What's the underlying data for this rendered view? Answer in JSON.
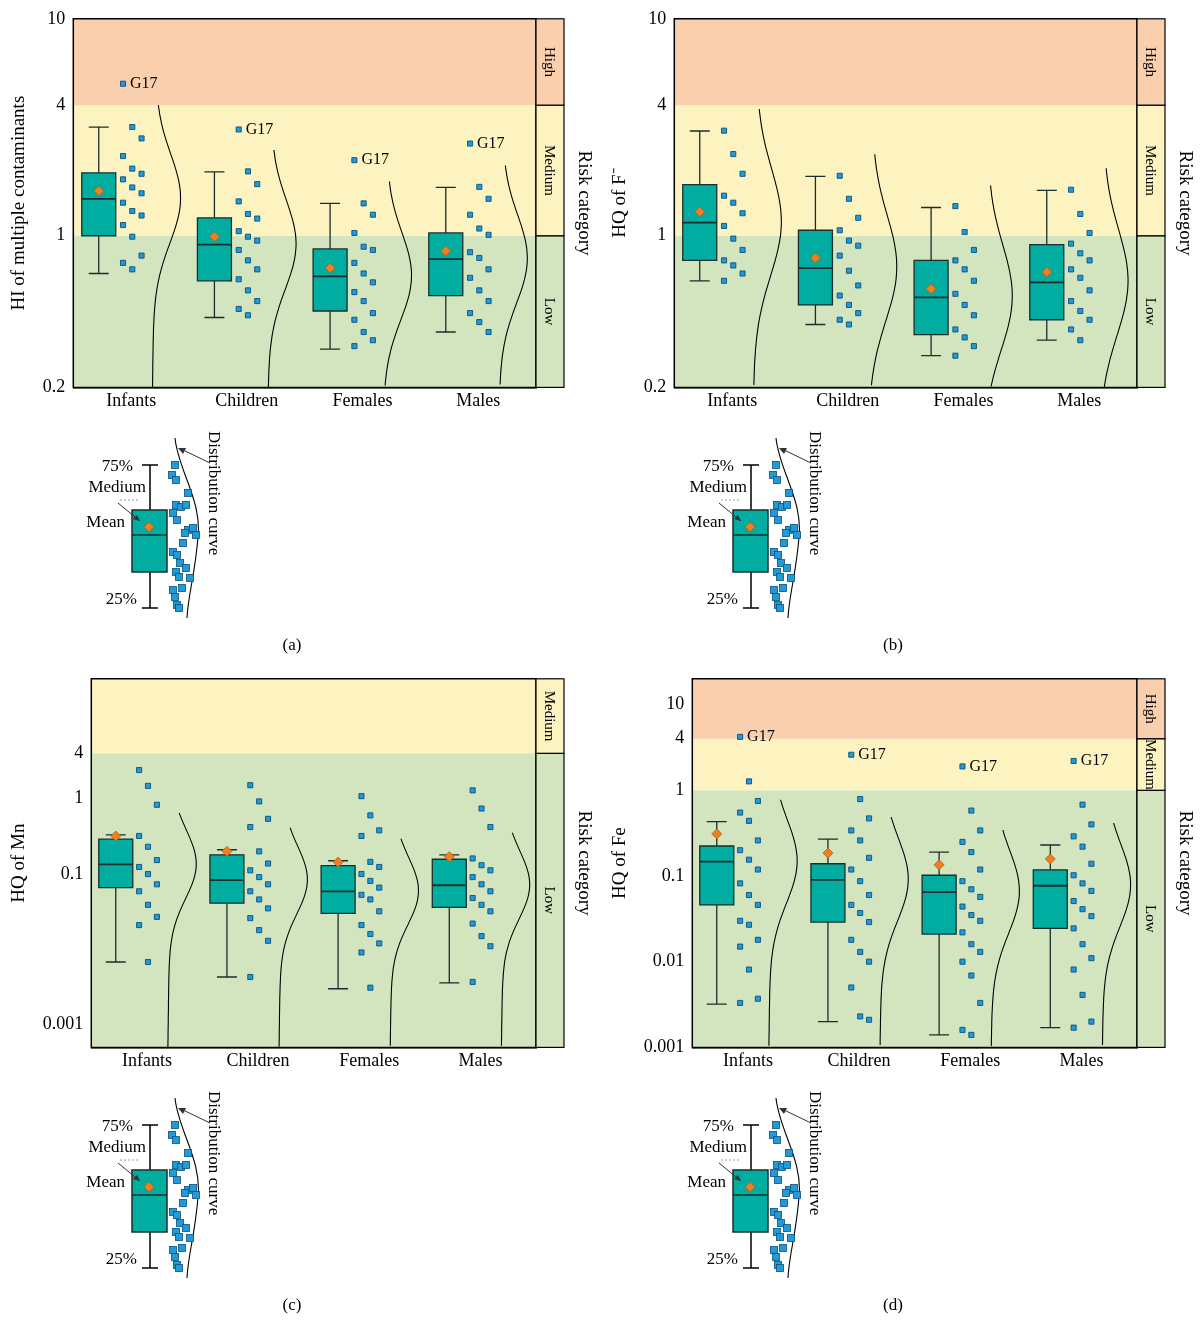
{
  "chart_data": [
    {
      "type": "box",
      "ylabel": "HI of multiple contaminants",
      "y2label": "Risk category",
      "log": true,
      "ylim": [
        0.2,
        10
      ],
      "yticks": [
        0.2,
        1,
        4,
        10
      ],
      "marker": "square",
      "categories": [
        "Infants",
        "Children",
        "Females",
        "Males"
      ],
      "boxes": [
        {
          "low": 0.67,
          "q1": 1.0,
          "median": 1.48,
          "q3": 1.95,
          "high": 3.17,
          "mean": 1.61
        },
        {
          "low": 0.42,
          "q1": 0.62,
          "median": 0.91,
          "q3": 1.21,
          "high": 1.97,
          "mean": 0.99
        },
        {
          "low": 0.3,
          "q1": 0.45,
          "median": 0.65,
          "q3": 0.87,
          "high": 1.41,
          "mean": 0.71
        },
        {
          "low": 0.36,
          "q1": 0.53,
          "median": 0.78,
          "q3": 1.03,
          "high": 1.67,
          "mean": 0.85
        }
      ],
      "series": [
        {
          "type": "scatter",
          "color": "#1f9bd7",
          "x": [
            "Infants",
            "Infants",
            "Infants",
            "Infants",
            "Infants",
            "Infants",
            "Infants",
            "Infants",
            "Infants",
            "Infants",
            "Infants",
            "Infants",
            "Infants",
            "Infants",
            "Infants",
            "Infants",
            "Infants"
          ],
          "values": [
            5.02,
            3.17,
            2.81,
            2.33,
            2.04,
            1.93,
            1.82,
            1.67,
            1.57,
            1.42,
            1.3,
            1.24,
            1.12,
            0.99,
            0.81,
            0.75,
            0.7
          ]
        },
        {
          "type": "scatter",
          "color": "#1f9bd7",
          "x": [
            "Children",
            "Children",
            "Children",
            "Children",
            "Children",
            "Children",
            "Children",
            "Children",
            "Children",
            "Children",
            "Children",
            "Children",
            "Children",
            "Children",
            "Children",
            "Children",
            "Children"
          ],
          "values": [
            3.09,
            1.98,
            1.73,
            1.44,
            1.26,
            1.2,
            1.05,
            0.99,
            0.95,
            0.86,
            0.77,
            0.7,
            0.63,
            0.56,
            0.5,
            0.46,
            0.43
          ]
        },
        {
          "type": "scatter",
          "color": "#1f9bd7",
          "x": [
            "Females",
            "Females",
            "Females",
            "Females",
            "Females",
            "Females",
            "Females",
            "Females",
            "Females",
            "Females",
            "Females",
            "Females",
            "Females",
            "Females",
            "Females",
            "Females"
          ],
          "values": [
            2.23,
            1.41,
            1.25,
            1.03,
            0.89,
            0.86,
            0.75,
            0.67,
            0.61,
            0.55,
            0.5,
            0.44,
            0.41,
            0.36,
            0.33,
            0.31
          ]
        },
        {
          "type": "scatter",
          "color": "#1f9bd7",
          "x": [
            "Males",
            "Males",
            "Males",
            "Males",
            "Males",
            "Males",
            "Males",
            "Males",
            "Males",
            "Males",
            "Males",
            "Males",
            "Males",
            "Males",
            "Males"
          ],
          "values": [
            2.66,
            1.68,
            1.48,
            1.25,
            1.08,
            1.01,
            0.84,
            0.79,
            0.7,
            0.64,
            0.56,
            0.5,
            0.44,
            0.4,
            0.36
          ]
        }
      ],
      "bands": [
        {
          "axis": "y",
          "from": 0.2,
          "to": 1,
          "label": "Low",
          "color": "#d3e5bf"
        },
        {
          "axis": "y",
          "from": 1,
          "to": 4,
          "label": "Medium",
          "color": "#fdf3c0"
        },
        {
          "axis": "y",
          "from": 4,
          "to": 10,
          "label": "High",
          "color": "#f9cfae"
        }
      ],
      "annotations": [
        "G17",
        "G17",
        "G17",
        "G17",
        "(a)",
        "75%",
        "Medium",
        "Mean",
        "25%",
        "Distribution curve"
      ]
    },
    {
      "type": "box",
      "ylabel": "HQ of F⁻",
      "y2label": "Risk category",
      "log": true,
      "ylim": [
        0.2,
        10
      ],
      "yticks": [
        0.2,
        1,
        4,
        10
      ],
      "marker": "square",
      "categories": [
        "Infants",
        "Children",
        "Females",
        "Males"
      ],
      "boxes": [
        {
          "low": 0.62,
          "q1": 0.77,
          "median": 1.15,
          "q3": 1.72,
          "high": 3.04,
          "mean": 1.29
        },
        {
          "low": 0.39,
          "q1": 0.48,
          "median": 0.71,
          "q3": 1.06,
          "high": 1.88,
          "mean": 0.79
        },
        {
          "low": 0.28,
          "q1": 0.35,
          "median": 0.52,
          "q3": 0.77,
          "high": 1.35,
          "mean": 0.57
        },
        {
          "low": 0.33,
          "q1": 0.41,
          "median": 0.61,
          "q3": 0.91,
          "high": 1.62,
          "mean": 0.68
        }
      ],
      "series": [
        {
          "type": "scatter",
          "color": "#1f9bd7",
          "x": [
            "Infants",
            "Infants",
            "Infants",
            "Infants",
            "Infants",
            "Infants",
            "Infants",
            "Infants",
            "Infants",
            "Infants",
            "Infants",
            "Infants",
            "Infants"
          ],
          "values": [
            3.05,
            2.38,
            1.93,
            1.53,
            1.42,
            1.27,
            1.11,
            0.97,
            0.86,
            0.77,
            0.73,
            0.67,
            0.62
          ]
        },
        {
          "type": "scatter",
          "color": "#1f9bd7",
          "x": [
            "Children",
            "Children",
            "Children",
            "Children",
            "Children",
            "Children",
            "Children",
            "Children",
            "Children",
            "Children",
            "Children",
            "Children",
            "Children",
            "Children"
          ],
          "values": [
            1.89,
            1.48,
            1.21,
            1.06,
            0.95,
            0.9,
            0.81,
            0.69,
            0.59,
            0.53,
            0.48,
            0.44,
            0.41,
            0.39
          ]
        },
        {
          "type": "scatter",
          "color": "#1f9bd7",
          "x": [
            "Females",
            "Females",
            "Females",
            "Females",
            "Females",
            "Females",
            "Females",
            "Females",
            "Females",
            "Females",
            "Females",
            "Females",
            "Females"
          ],
          "values": [
            1.37,
            1.04,
            0.86,
            0.77,
            0.7,
            0.62,
            0.54,
            0.48,
            0.43,
            0.37,
            0.34,
            0.31,
            0.28
          ]
        },
        {
          "type": "scatter",
          "color": "#1f9bd7",
          "x": [
            "Males",
            "Males",
            "Males",
            "Males",
            "Males",
            "Males",
            "Males",
            "Males",
            "Males",
            "Males",
            "Males",
            "Males",
            "Males",
            "Males"
          ],
          "values": [
            1.63,
            1.26,
            1.03,
            0.92,
            0.83,
            0.77,
            0.7,
            0.64,
            0.56,
            0.5,
            0.45,
            0.41,
            0.37,
            0.33
          ]
        }
      ],
      "bands": [
        {
          "axis": "y",
          "from": 0.2,
          "to": 1,
          "label": "Low",
          "color": "#d3e5bf"
        },
        {
          "axis": "y",
          "from": 1,
          "to": 4,
          "label": "Medium",
          "color": "#fdf3c0"
        },
        {
          "axis": "y",
          "from": 4,
          "to": 10,
          "label": "High",
          "color": "#f9cfae"
        }
      ],
      "annotations": [
        "(b)",
        "75%",
        "Medium",
        "Mean",
        "25%",
        "Distribution curve"
      ]
    },
    {
      "type": "box",
      "ylabel": "HQ of Mn",
      "y2label": "Risk category",
      "log": true,
      "ylim": [
        0.0005,
        39
      ],
      "yticks": [
        0.001,
        0.1,
        1,
        4
      ],
      "marker": "square",
      "categories": [
        "Infants",
        "Children",
        "Females",
        "Males"
      ],
      "boxes": [
        {
          "low": 0.0068,
          "q1": 0.066,
          "median": 0.134,
          "q3": 0.29,
          "high": 0.33,
          "mean": 0.32
        },
        {
          "low": 0.0043,
          "q1": 0.041,
          "median": 0.083,
          "q3": 0.18,
          "high": 0.21,
          "mean": 0.2
        },
        {
          "low": 0.003,
          "q1": 0.03,
          "median": 0.059,
          "q3": 0.129,
          "high": 0.15,
          "mean": 0.144
        },
        {
          "low": 0.0036,
          "q1": 0.036,
          "median": 0.071,
          "q3": 0.157,
          "high": 0.18,
          "mean": 0.17
        }
      ],
      "series": [
        {
          "type": "scatter",
          "color": "#1f9bd7",
          "x": [
            "Infants",
            "Infants",
            "Infants",
            "Infants",
            "Infants",
            "Infants",
            "Infants",
            "Infants",
            "Infants",
            "Infants",
            "Infants",
            "Infants",
            "Infants",
            "Infants"
          ],
          "values": [
            2.4,
            1.48,
            0.83,
            0.32,
            0.23,
            0.153,
            0.124,
            0.1,
            0.073,
            0.059,
            0.039,
            0.027,
            0.021,
            0.0068
          ]
        },
        {
          "type": "scatter",
          "color": "#1f9bd7",
          "x": [
            "Children",
            "Children",
            "Children",
            "Children",
            "Children",
            "Children",
            "Children",
            "Children",
            "Children",
            "Children",
            "Children",
            "Children",
            "Children",
            "Children",
            "Children",
            "Children"
          ],
          "values": [
            1.51,
            0.92,
            0.54,
            0.42,
            0.2,
            0.138,
            0.112,
            0.091,
            0.073,
            0.059,
            0.046,
            0.035,
            0.026,
            0.018,
            0.013,
            0.0043
          ]
        },
        {
          "type": "scatter",
          "color": "#1f9bd7",
          "x": [
            "Females",
            "Females",
            "Females",
            "Females",
            "Females",
            "Females",
            "Females",
            "Females",
            "Females",
            "Females",
            "Females",
            "Females",
            "Females",
            "Females",
            "Females",
            "Females",
            "Females"
          ],
          "values": [
            1.08,
            0.6,
            0.38,
            0.32,
            0.145,
            0.124,
            0.1,
            0.081,
            0.066,
            0.053,
            0.046,
            0.032,
            0.021,
            0.016,
            0.012,
            0.0091,
            0.0031
          ]
        },
        {
          "type": "scatter",
          "color": "#1f9bd7",
          "x": [
            "Males",
            "Males",
            "Males",
            "Males",
            "Males",
            "Males",
            "Males",
            "Males",
            "Males",
            "Males",
            "Males",
            "Males",
            "Males",
            "Males",
            "Males",
            "Males"
          ],
          "values": [
            1.29,
            0.74,
            0.42,
            0.161,
            0.131,
            0.112,
            0.091,
            0.073,
            0.059,
            0.048,
            0.039,
            0.032,
            0.022,
            0.015,
            0.011,
            0.0037
          ]
        }
      ],
      "bands": [
        {
          "axis": "y",
          "from": 0.0005,
          "to": 4,
          "label": "Low",
          "color": "#d3e5bf"
        },
        {
          "axis": "y",
          "from": 4,
          "to": 39,
          "label": "Medium",
          "color": "#fdf3c0"
        }
      ],
      "annotations": [
        "(c)",
        "75%",
        "Medium",
        "Mean",
        "25%",
        "Distribution curve"
      ]
    },
    {
      "type": "box",
      "ylabel": "HQ of Fe",
      "y2label": "Risk category",
      "log": true,
      "ylim": [
        0.001,
        20
      ],
      "yticks": [
        0.001,
        0.01,
        0.1,
        1,
        4,
        10
      ],
      "marker": "square",
      "categories": [
        "Infants",
        "Children",
        "Females",
        "Males"
      ],
      "boxes": [
        {
          "low": 0.0032,
          "q1": 0.046,
          "median": 0.147,
          "q3": 0.224,
          "high": 0.43,
          "mean": 0.31
        },
        {
          "low": 0.002,
          "q1": 0.029,
          "median": 0.09,
          "q3": 0.139,
          "high": 0.27,
          "mean": 0.185
        },
        {
          "low": 0.0014,
          "q1": 0.021,
          "median": 0.065,
          "q3": 0.102,
          "high": 0.19,
          "mean": 0.135
        },
        {
          "low": 0.0017,
          "q1": 0.0245,
          "median": 0.077,
          "q3": 0.118,
          "high": 0.23,
          "mean": 0.158
        }
      ],
      "series": [
        {
          "type": "scatter",
          "color": "#1f9bd7",
          "x": [
            "Infants",
            "Infants",
            "Infants",
            "Infants",
            "Infants",
            "Infants",
            "Infants",
            "Infants",
            "Infants",
            "Infants",
            "Infants",
            "Infants",
            "Infants",
            "Infants",
            "Infants",
            "Infants",
            "Infants",
            "Infants",
            "Infants"
          ],
          "values": [
            4.2,
            1.27,
            0.75,
            0.55,
            0.44,
            0.26,
            0.2,
            0.155,
            0.119,
            0.082,
            0.06,
            0.046,
            0.03,
            0.027,
            0.018,
            0.015,
            0.0081,
            0.0037,
            0.0033
          ]
        },
        {
          "type": "scatter",
          "color": "#1f9bd7",
          "x": [
            "Children",
            "Children",
            "Children",
            "Children",
            "Children",
            "Children",
            "Children",
            "Children",
            "Children",
            "Children",
            "Children",
            "Children",
            "Children",
            "Children",
            "Children",
            "Children",
            "Children",
            "Children"
          ],
          "values": [
            2.6,
            0.79,
            0.47,
            0.34,
            0.26,
            0.163,
            0.119,
            0.087,
            0.06,
            0.046,
            0.037,
            0.029,
            0.018,
            0.013,
            0.01,
            0.005,
            0.0023,
            0.0021
          ]
        },
        {
          "type": "scatter",
          "color": "#1f9bd7",
          "x": [
            "Females",
            "Females",
            "Females",
            "Females",
            "Females",
            "Females",
            "Females",
            "Females",
            "Females",
            "Females",
            "Females",
            "Females",
            "Females",
            "Females",
            "Females",
            "Females",
            "Females",
            "Females",
            "Females",
            "Females"
          ],
          "values": [
            1.9,
            0.58,
            0.34,
            0.25,
            0.19,
            0.119,
            0.087,
            0.07,
            0.057,
            0.044,
            0.035,
            0.03,
            0.022,
            0.016,
            0.013,
            0.01,
            0.0069,
            0.0033,
            0.0016,
            0.0014
          ]
        },
        {
          "type": "scatter",
          "color": "#1f9bd7",
          "x": [
            "Males",
            "Males",
            "Males",
            "Males",
            "Males",
            "Males",
            "Males",
            "Males",
            "Males",
            "Males",
            "Males",
            "Males",
            "Males",
            "Males",
            "Males",
            "Males",
            "Males",
            "Males",
            "Males"
          ],
          "values": [
            2.2,
            0.68,
            0.4,
            0.29,
            0.22,
            0.139,
            0.102,
            0.082,
            0.067,
            0.051,
            0.041,
            0.034,
            0.0245,
            0.016,
            0.011,
            0.0081,
            0.0041,
            0.002,
            0.0017
          ]
        }
      ],
      "bands": [
        {
          "axis": "y",
          "from": 0.001,
          "to": 1,
          "label": "Low",
          "color": "#d3e5bf"
        },
        {
          "axis": "y",
          "from": 1,
          "to": 4,
          "label": "Medium",
          "color": "#fdf3c0"
        },
        {
          "axis": "y",
          "from": 4,
          "to": 20,
          "label": "High",
          "color": "#f9cfae"
        }
      ],
      "annotations": [
        "G17",
        "G17",
        "G17",
        "G17",
        "(d)",
        "75%",
        "Medium",
        "Mean",
        "25%",
        "Distribution curve"
      ]
    }
  ]
}
